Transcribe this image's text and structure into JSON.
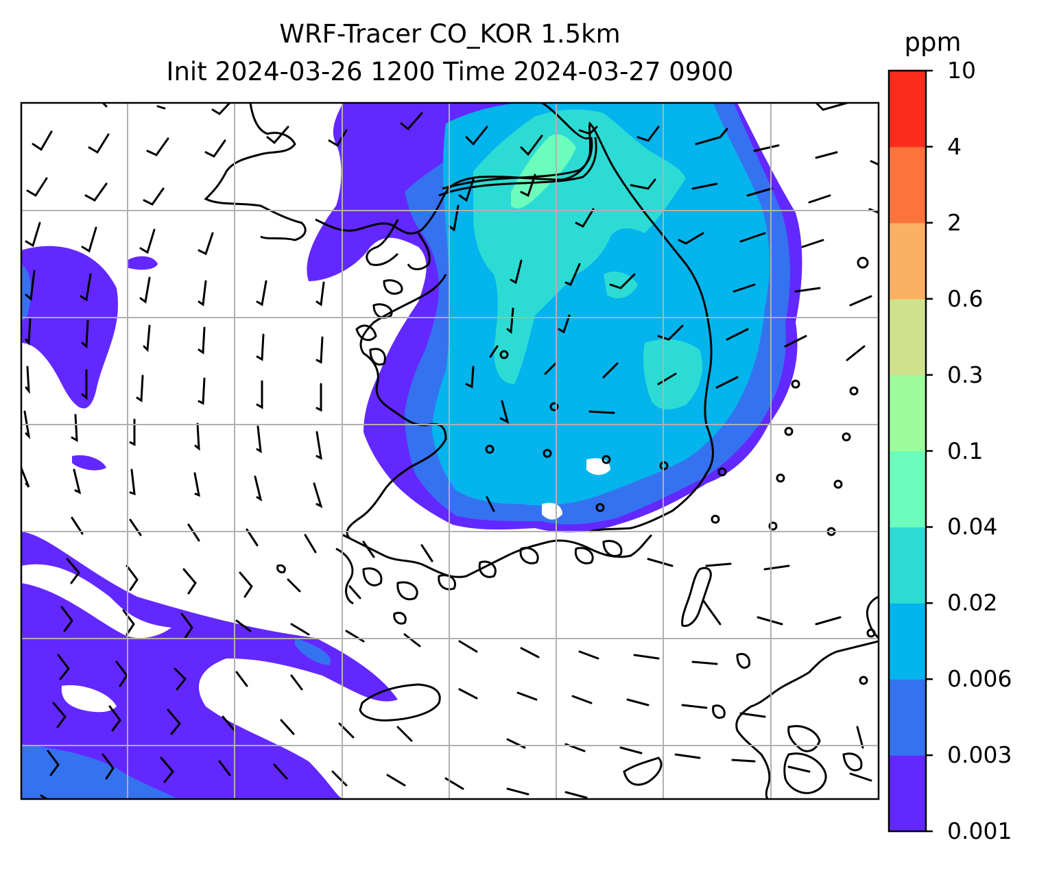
{
  "title": {
    "line1": "WRF-Tracer CO_KOR 1.5km",
    "line2": "Init 2024-03-26 1200 Time 2024-03-27 0900"
  },
  "colorbar": {
    "unit": "ppm",
    "levels": [
      "0.001",
      "0.003",
      "0.006",
      "0.02",
      "0.04",
      "0.1",
      "0.3",
      "0.6",
      "2",
      "4",
      "10"
    ],
    "colors": [
      "#6328ff",
      "#3572f0",
      "#04b4ec",
      "#2cdcd4",
      "#6cfcbc",
      "#9cfc9c",
      "#d0e28c",
      "#fcb064",
      "#fc743c",
      "#fc2c1c"
    ]
  },
  "map": {
    "field": "CO tracer concentration",
    "overlays": [
      "coastlines",
      "wind-barbs",
      "gridlines"
    ],
    "gridline_color": "#b0b0b0"
  }
}
